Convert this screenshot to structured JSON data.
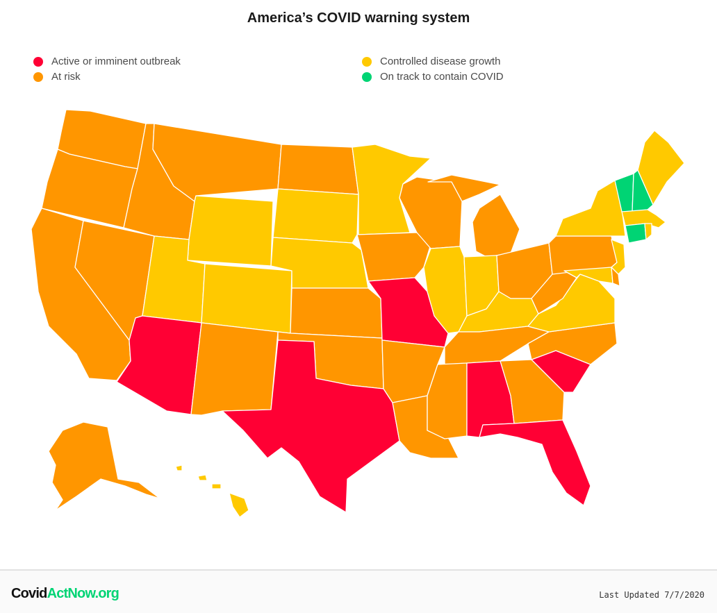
{
  "title": "America’s COVID warning system",
  "legend": [
    {
      "label": "Active or imminent outbreak",
      "color": "#ff0034"
    },
    {
      "label": "At risk",
      "color": "#ff9600"
    },
    {
      "label": "Controlled disease growth",
      "color": "#ffc900"
    },
    {
      "label": "On track to contain COVID",
      "color": "#00d474"
    }
  ],
  "states": {
    "WA": "risk",
    "OR": "risk",
    "CA": "risk",
    "NV": "risk",
    "ID": "risk",
    "MT": "risk",
    "WY": "controlled",
    "UT": "controlled",
    "AZ": "outbreak",
    "CO": "controlled",
    "NM": "risk",
    "ND": "risk",
    "SD": "controlled",
    "NE": "controlled",
    "KS": "risk",
    "OK": "risk",
    "TX": "outbreak",
    "MN": "controlled",
    "IA": "risk",
    "MO": "outbreak",
    "AR": "risk",
    "LA": "risk",
    "WI": "risk",
    "IL": "controlled",
    "MI": "risk",
    "IN": "controlled",
    "OH": "risk",
    "KY": "controlled",
    "TN": "risk",
    "MS": "risk",
    "AL": "outbreak",
    "GA": "risk",
    "FL": "outbreak",
    "SC": "outbreak",
    "NC": "risk",
    "VA": "controlled",
    "WV": "risk",
    "PA": "risk",
    "NY": "controlled",
    "NJ": "controlled",
    "DE": "risk",
    "MD": "controlled",
    "CT": "contain",
    "RI": "controlled",
    "MA": "controlled",
    "VT": "contain",
    "NH": "contain",
    "ME": "controlled",
    "AK": "risk",
    "HI": "controlled"
  },
  "colors": {
    "outbreak": "#ff0034",
    "risk": "#ff9600",
    "controlled": "#ffc900",
    "contain": "#00d474"
  },
  "footer": {
    "brand_part1": "Covid",
    "brand_part2": "ActNow.org",
    "updated": "Last Updated 7/7/2020"
  }
}
